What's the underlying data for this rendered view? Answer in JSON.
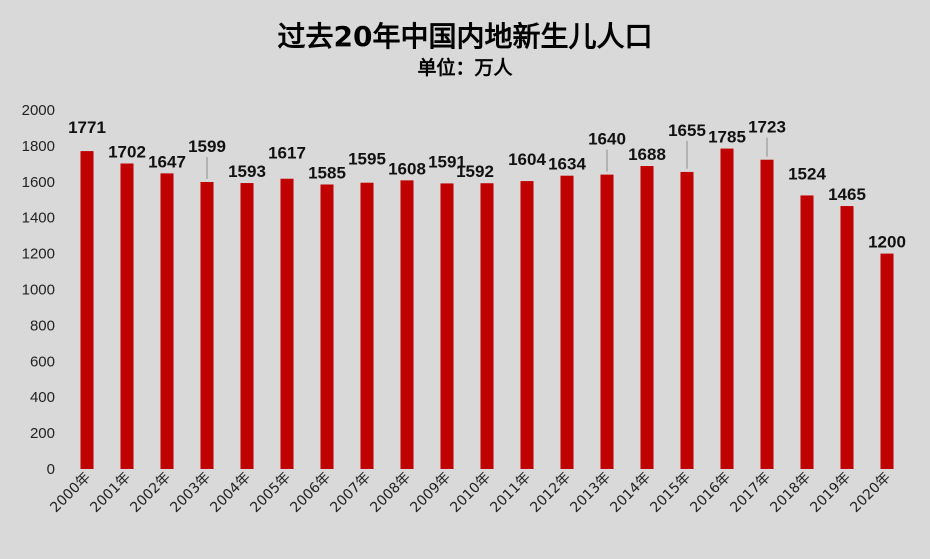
{
  "chart_data": {
    "type": "bar",
    "title": "过去20年中国内地新生儿人口",
    "subtitle": "单位：万人",
    "categories": [
      "2000年",
      "2001年",
      "2002年",
      "2003年",
      "2004年",
      "2005年",
      "2006年",
      "2007年",
      "2008年",
      "2009年",
      "2010年",
      "2011年",
      "2012年",
      "2013年",
      "2014年",
      "2015年",
      "2016年",
      "2017年",
      "2018年",
      "2019年",
      "2020年"
    ],
    "values": [
      1771,
      1702,
      1647,
      1599,
      1593,
      1617,
      1585,
      1595,
      1608,
      1591,
      1592,
      1604,
      1634,
      1640,
      1688,
      1655,
      1785,
      1723,
      1524,
      1465,
      1200
    ],
    "ylim": [
      0,
      2000
    ],
    "yticks": [
      0,
      200,
      400,
      600,
      800,
      1000,
      1200,
      1400,
      1600,
      1800,
      2000
    ],
    "grid": false,
    "bar_color": "#c00000",
    "background": "#d9d9d9"
  }
}
